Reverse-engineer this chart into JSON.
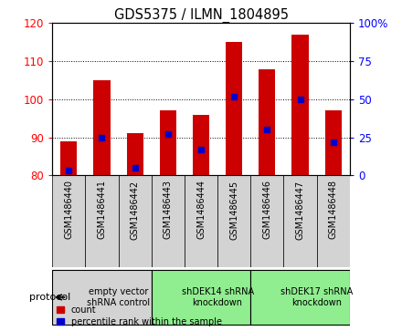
{
  "title": "GDS5375 / ILMN_1804895",
  "samples": [
    "GSM1486440",
    "GSM1486441",
    "GSM1486442",
    "GSM1486443",
    "GSM1486444",
    "GSM1486445",
    "GSM1486446",
    "GSM1486447",
    "GSM1486448"
  ],
  "counts": [
    89,
    105,
    91,
    97,
    96,
    115,
    108,
    117,
    97
  ],
  "percentile_ranks": [
    3,
    25,
    5,
    27,
    17,
    52,
    30,
    50,
    22
  ],
  "groups": [
    {
      "label": "empty vector\nshRNA control",
      "start": 0,
      "end": 3,
      "color": "#d3d3d3"
    },
    {
      "label": "shDEK14 shRNA\nknockdown",
      "start": 3,
      "end": 6,
      "color": "#90ee90"
    },
    {
      "label": "shDEK17 shRNA\nknockdown",
      "start": 6,
      "end": 9,
      "color": "#90ee90"
    }
  ],
  "ylim_left": [
    80,
    120
  ],
  "ylim_right": [
    0,
    100
  ],
  "yticks_left": [
    80,
    90,
    100,
    110,
    120
  ],
  "yticks_right": [
    0,
    25,
    50,
    75,
    100
  ],
  "bar_color": "#CC0000",
  "dot_color": "#0000CC",
  "bar_bottom": 80,
  "legend_count_label": "count",
  "legend_pct_label": "percentile rank within the sample",
  "protocol_label": "protocol"
}
